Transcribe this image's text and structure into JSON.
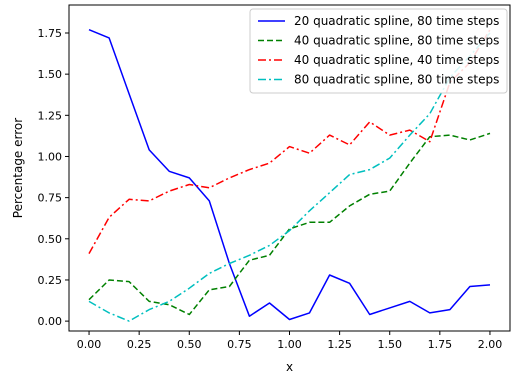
{
  "chart_data": {
    "type": "line",
    "title": "",
    "xlabel": "x",
    "ylabel": "Percentage error",
    "xlim": [
      -0.1,
      2.1
    ],
    "ylim": [
      -0.06,
      1.92
    ],
    "grid": false,
    "legend_position": "top-right",
    "x_ticks": [
      0.0,
      0.25,
      0.5,
      0.75,
      1.0,
      1.25,
      1.5,
      1.75,
      2.0
    ],
    "x_tick_labels": [
      "0.00",
      "0.25",
      "0.50",
      "0.75",
      "1.00",
      "1.25",
      "1.50",
      "1.75",
      "2.00"
    ],
    "y_ticks": [
      0.0,
      0.25,
      0.5,
      0.75,
      1.0,
      1.25,
      1.5,
      1.75
    ],
    "y_tick_labels": [
      "0.00",
      "0.25",
      "0.50",
      "0.75",
      "1.00",
      "1.25",
      "1.50",
      "1.75"
    ],
    "x": [
      0.0,
      0.1,
      0.2,
      0.3,
      0.4,
      0.5,
      0.6,
      0.7,
      0.8,
      0.9,
      1.0,
      1.1,
      1.2,
      1.3,
      1.4,
      1.5,
      1.6,
      1.7,
      1.8,
      1.9,
      2.0
    ],
    "series": [
      {
        "name": "20 quadratic spline, 80 time steps",
        "color": "#0000ff",
        "dash": "solid",
        "values": [
          1.77,
          1.72,
          1.38,
          1.04,
          0.91,
          0.87,
          0.73,
          0.35,
          0.03,
          0.11,
          0.01,
          0.05,
          0.28,
          0.23,
          0.04,
          0.08,
          0.12,
          0.05,
          0.07,
          0.21,
          0.22
        ]
      },
      {
        "name": "40 quadratic spline, 80 time steps",
        "color": "#008000",
        "dash": "dashed",
        "values": [
          0.13,
          0.25,
          0.24,
          0.12,
          0.1,
          0.04,
          0.19,
          0.21,
          0.37,
          0.4,
          0.56,
          0.6,
          0.6,
          0.7,
          0.77,
          0.79,
          0.96,
          1.12,
          1.13,
          1.1,
          1.14
        ]
      },
      {
        "name": "40 quadratic spline, 40 time steps",
        "color": "#ff0000",
        "dash": "dashdot",
        "values": [
          0.41,
          0.63,
          0.74,
          0.73,
          0.79,
          0.83,
          0.81,
          0.87,
          0.92,
          0.96,
          1.06,
          1.02,
          1.13,
          1.07,
          1.21,
          1.13,
          1.16,
          1.09,
          1.45,
          1.57,
          1.77
        ]
      },
      {
        "name": "80 quadratic spline, 80 time steps",
        "color": "#00bfbf",
        "dash": "dashdot",
        "values": [
          0.12,
          0.05,
          0.0,
          0.07,
          0.12,
          0.2,
          0.29,
          0.35,
          0.4,
          0.46,
          0.55,
          0.67,
          0.78,
          0.89,
          0.92,
          0.99,
          1.13,
          1.26,
          1.48,
          1.61,
          1.75
        ]
      }
    ]
  }
}
